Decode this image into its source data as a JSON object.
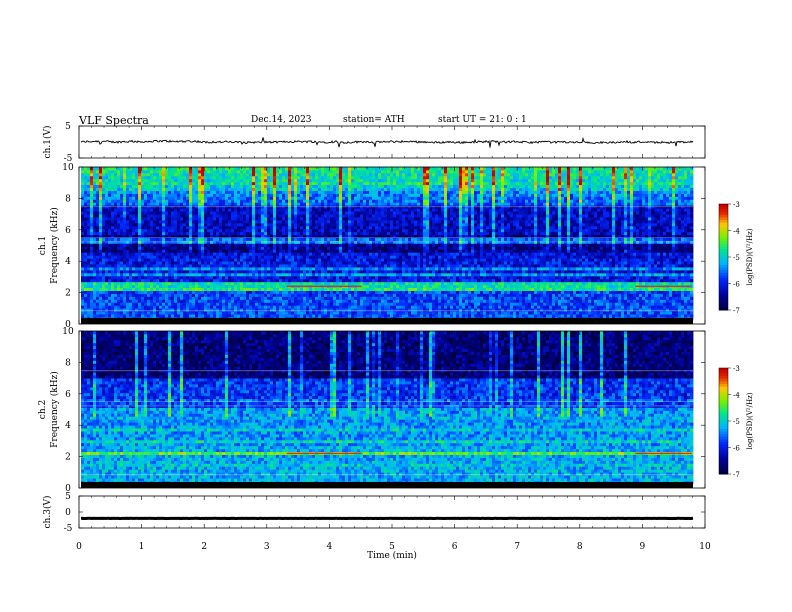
{
  "header": {
    "title": "VLF  Spectra",
    "date": "Dec.14, 2023",
    "station": "station= ATH",
    "start": "start  UT  =    21: 0   : 1"
  },
  "colors": {
    "spectrogram_low": "#000080",
    "spectrogram_mid": "#00d060",
    "spectrogram_high": "#d00000",
    "waveform": "#000000"
  },
  "chart_data": [
    {
      "type": "line",
      "name": "ch1-waveform",
      "ylabel": "ch.1(V)",
      "ylim": [
        -5,
        5
      ],
      "yticks": [
        "5",
        "-5"
      ],
      "xlim": [
        0,
        10
      ],
      "trace_level": 0,
      "trace_noise": 0.6
    },
    {
      "type": "heatmap",
      "name": "ch1-spectrogram",
      "ylabel": "ch.1\nFrequency (kHz)",
      "ylim": [
        0,
        10
      ],
      "yticks": [
        "0",
        "2",
        "4",
        "6",
        "8",
        "10"
      ],
      "xlim": [
        0,
        10
      ],
      "colorbar": {
        "label": "log(PSD)(V²/Hz)",
        "ticks": [
          "-3",
          "-4",
          "-5",
          "-6",
          "-7"
        ],
        "range": [
          -7,
          -3
        ]
      },
      "bands": [
        {
          "f": 2.0,
          "level": -4.6
        },
        {
          "f": 2.3,
          "level": -4.8
        },
        {
          "f": 3.0,
          "level": -5.3
        },
        {
          "f": 3.4,
          "level": -5.4
        },
        {
          "f": 4.0,
          "level": -6.0
        },
        {
          "f": 5.2,
          "level": -5.6
        },
        {
          "f": 6.8,
          "level": -6.2
        },
        {
          "f": 9.0,
          "level": -5.0
        }
      ]
    },
    {
      "type": "heatmap",
      "name": "ch2-spectrogram",
      "ylabel": "ch.2\nFrequency (kHz)",
      "ylim": [
        0,
        10
      ],
      "yticks": [
        "0",
        "2",
        "4",
        "6",
        "8",
        "10"
      ],
      "xlim": [
        0,
        10
      ],
      "colorbar": {
        "label": "log(PSD)(V²/Hz)",
        "ticks": [
          "-3",
          "-4",
          "-5",
          "-6",
          "-7"
        ],
        "range": [
          -7,
          -3
        ]
      },
      "bands": [
        {
          "f": 1.2,
          "level": -5.0
        },
        {
          "f": 2.0,
          "level": -4.3
        },
        {
          "f": 2.8,
          "level": -4.9
        },
        {
          "f": 3.5,
          "level": -5.0
        },
        {
          "f": 4.3,
          "level": -5.2
        },
        {
          "f": 5.5,
          "level": -5.6
        },
        {
          "f": 6.8,
          "level": -6.0
        }
      ]
    },
    {
      "type": "line",
      "name": "ch3-waveform",
      "ylabel": "ch.3(V)",
      "ylim": [
        -5,
        5
      ],
      "yticks": [
        "5",
        "0",
        "-5"
      ],
      "xlim": [
        0,
        10
      ],
      "trace_level": -2,
      "trace_noise": 0.05,
      "xlabel": "Time  (min)",
      "xticks": [
        "0",
        "1",
        "2",
        "3",
        "4",
        "5",
        "6",
        "7",
        "8",
        "9",
        "10"
      ]
    }
  ]
}
